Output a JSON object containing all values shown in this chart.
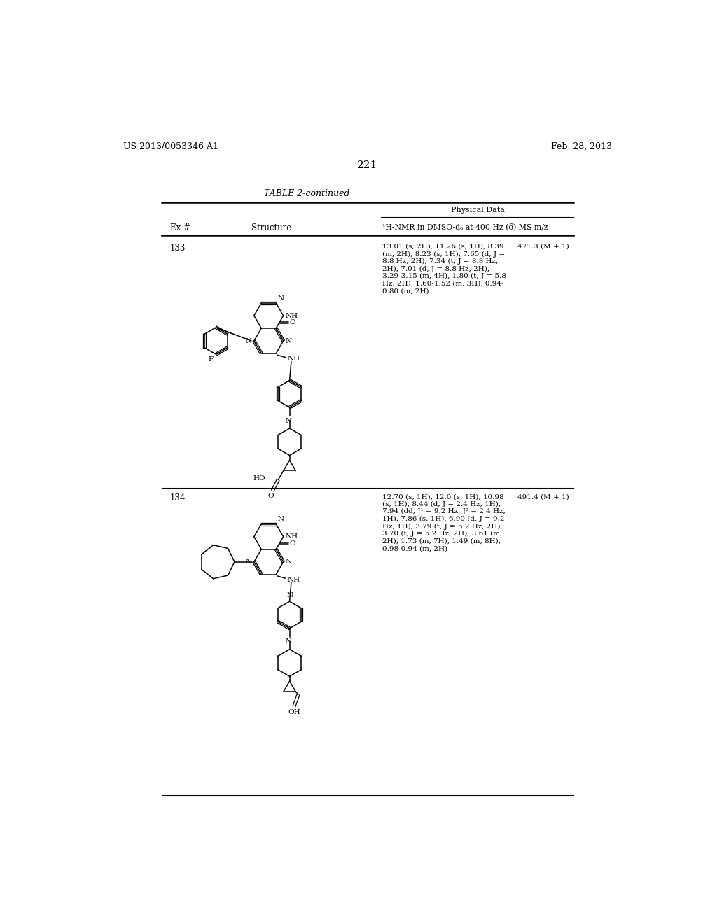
{
  "bg_color": "#ffffff",
  "page_width": 10.24,
  "page_height": 13.2,
  "header_left": "US 2013/0053346 A1",
  "header_right": "Feb. 28, 2013",
  "page_number": "221",
  "table_title": "TABLE 2-continued",
  "subheader": "¹H-NMR in DMSO-d₆ at 400 Hz (δ) MS m/z",
  "row133_ex": "133",
  "row133_nmr": "13.01 (s, 2H), 11.26 (s, 1H), 8.39\n(m, 2H), 8.23 (s, 1H), 7.65 (d, J =\n8.8 Hz, 2H), 7.34 (t, J = 8.8 Hz,\n2H), 7.01 (d, J = 8.8 Hz, 2H),\n3.29-3.15 (m, 4H), 1.80 (t, J = 5.8\nHz, 2H), 1.60-1.52 (m, 3H), 0.94-\n0.80 (m, 2H)",
  "row133_ms": "471.3 (M + 1)",
  "row134_ex": "134",
  "row134_nmr": "12.70 (s, 1H), 12.0 (s, 1H), 10.98\n(s, 1H), 8.44 (d, J = 2.4 Hz, 1H),\n7.94 (dd, J¹ = 9.2 Hz, J² = 2.4 Hz,\n1H), 7.86 (s, 1H), 6.90 (d, J = 9.2\nHz, 1H), 3.79 (t, J = 5.2 Hz, 2H),\n3.70 (t, J = 5.2 Hz, 2H), 3.61 (m,\n2H), 1.73 (m, 7H), 1.49 (m, 8H),\n0.98-0.94 (m, 2H)",
  "row134_ms": "491.4 (M + 1)"
}
